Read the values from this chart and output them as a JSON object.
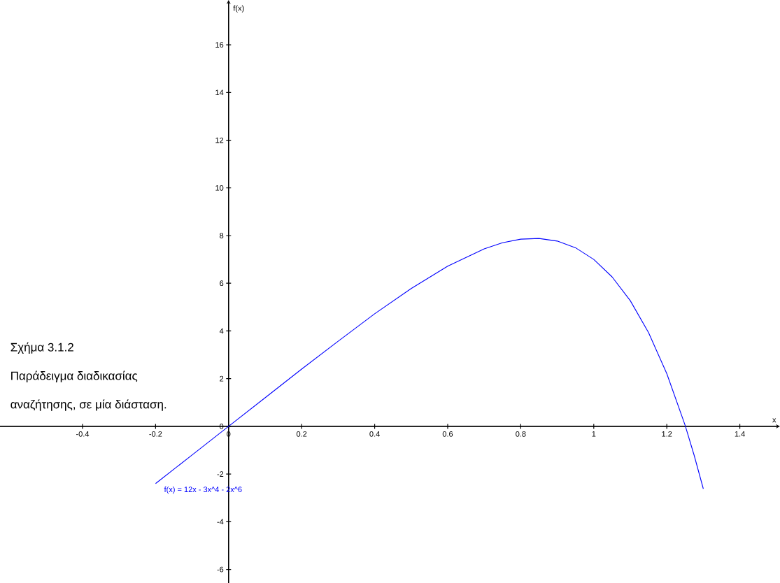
{
  "chart_data": {
    "type": "line",
    "xlabel": "x",
    "ylabel": "f(x)",
    "color": "#0000ff",
    "x": [
      -0.2,
      -0.1,
      0,
      0.1,
      0.2,
      0.3,
      0.4,
      0.5,
      0.6,
      0.7,
      0.75,
      0.8,
      0.85,
      0.9,
      0.95,
      1.0,
      1.05,
      1.1,
      1.15,
      1.2,
      1.25,
      1.275,
      1.3
    ],
    "values": [
      -2.4,
      -1.2,
      0,
      1.2,
      2.4,
      3.57,
      4.72,
      5.78,
      6.72,
      7.44,
      7.7,
      7.85,
      7.88,
      7.77,
      7.49,
      7.0,
      6.27,
      5.27,
      3.93,
      2.21,
      0.05,
      -1.22,
      -2.62
    ],
    "xlim": [
      -0.626,
      1.51
    ],
    "ylim": [
      -6.57,
      17.88
    ],
    "xticks": [
      -0.4,
      -0.2,
      0,
      0.2,
      0.4,
      0.6,
      0.8,
      1,
      1.2,
      1.4
    ],
    "yticks": [
      -6,
      -4,
      -2,
      0,
      2,
      4,
      6,
      8,
      10,
      12,
      14,
      16
    ],
    "annotations": [
      "Σχήμα 3.1.2",
      "Παράδειγμα διαδικασίας",
      "αναζήτησης, σε μία διάσταση.",
      {
        "text": "f(x) = 12x - 3x^4 - 2x^6",
        "x": -0.2,
        "y": -2.4
      }
    ]
  }
}
